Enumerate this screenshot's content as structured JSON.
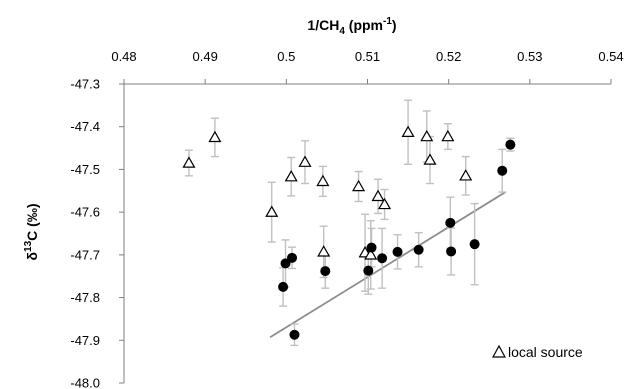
{
  "chart_data": {
    "type": "scatter",
    "x_axis": {
      "title_main": "1/CH",
      "title_sub": "4",
      "title_unit_open": " (ppm",
      "title_unit_sup": "-1",
      "title_unit_close": ")",
      "position": "top",
      "range": [
        0.48,
        0.54
      ],
      "ticks": [
        "0.48",
        "0.49",
        "0.5",
        "0.51",
        "0.52",
        "0.53",
        "0.54"
      ]
    },
    "y_axis": {
      "title_main": "δ",
      "title_sup": "13",
      "title_rest": "C (‰)",
      "range": [
        -48.0,
        -47.3
      ],
      "inverted": true,
      "ticks": [
        "-47.3",
        "-47.4",
        "-47.5",
        "-47.6",
        "-47.7",
        "-47.8",
        "-47.9",
        "-48.0"
      ]
    },
    "grid": false,
    "legend": {
      "position": "bottom-right",
      "marker": "open-triangle",
      "label": "local source"
    },
    "series": [
      {
        "label": "local source",
        "marker": "open-triangle",
        "points": [
          {
            "x": 0.488,
            "y": -47.485,
            "err": 0.03
          },
          {
            "x": 0.4912,
            "y": -47.425,
            "err": 0.045
          },
          {
            "x": 0.4982,
            "y": -47.6,
            "err": 0.07
          },
          {
            "x": 0.5006,
            "y": -47.517,
            "err": 0.045
          },
          {
            "x": 0.5023,
            "y": -47.483,
            "err": 0.05
          },
          {
            "x": 0.5045,
            "y": -47.528,
            "err": 0.035
          },
          {
            "x": 0.5046,
            "y": -47.693,
            "err": 0.06
          },
          {
            "x": 0.5089,
            "y": -47.54,
            "err": 0.035
          },
          {
            "x": 0.5097,
            "y": -47.695,
            "err": 0.09
          },
          {
            "x": 0.5104,
            "y": -47.7,
            "err": 0.08
          },
          {
            "x": 0.5113,
            "y": -47.563,
            "err": 0.04
          },
          {
            "x": 0.5121,
            "y": -47.582,
            "err": 0.035
          },
          {
            "x": 0.515,
            "y": -47.413,
            "err": 0.075
          },
          {
            "x": 0.5173,
            "y": -47.423,
            "err": 0.06
          },
          {
            "x": 0.5177,
            "y": -47.478,
            "err": 0.055
          },
          {
            "x": 0.5199,
            "y": -47.423,
            "err": 0.03
          },
          {
            "x": 0.5221,
            "y": -47.515,
            "err": 0.045
          }
        ]
      },
      {
        "label": "",
        "marker": "filled-circle",
        "points": [
          {
            "x": 0.4996,
            "y": -47.775,
            "err": 0.045
          },
          {
            "x": 0.4999,
            "y": -47.72,
            "err": 0.055
          },
          {
            "x": 0.5007,
            "y": -47.707,
            "err": 0.025
          },
          {
            "x": 0.501,
            "y": -47.887,
            "err": 0.025
          },
          {
            "x": 0.5048,
            "y": -47.738,
            "err": 0.04
          },
          {
            "x": 0.5101,
            "y": -47.737,
            "err": 0.055
          },
          {
            "x": 0.5105,
            "y": -47.683,
            "err": 0.045
          },
          {
            "x": 0.5118,
            "y": -47.708,
            "err": 0.07
          },
          {
            "x": 0.5137,
            "y": -47.693,
            "err": 0.04
          },
          {
            "x": 0.5163,
            "y": -47.688,
            "err": 0.04
          },
          {
            "x": 0.5202,
            "y": -47.625,
            "err": 0.06
          },
          {
            "x": 0.5203,
            "y": -47.692,
            "err": 0.055
          },
          {
            "x": 0.5232,
            "y": -47.675,
            "err": 0.095
          },
          {
            "x": 0.5266,
            "y": -47.503,
            "err": 0.05
          },
          {
            "x": 0.5276,
            "y": -47.442,
            "err": 0.015
          }
        ]
      }
    ],
    "trendline": {
      "x": [
        0.498,
        0.527
      ],
      "y": [
        -47.893,
        -47.553
      ],
      "color": "#8c8c8c"
    },
    "colors": {
      "axis": "#7f7f7f",
      "error_bar": "#c0c0c0",
      "marker": "#000000",
      "trendline": "#8c8c8c"
    }
  }
}
